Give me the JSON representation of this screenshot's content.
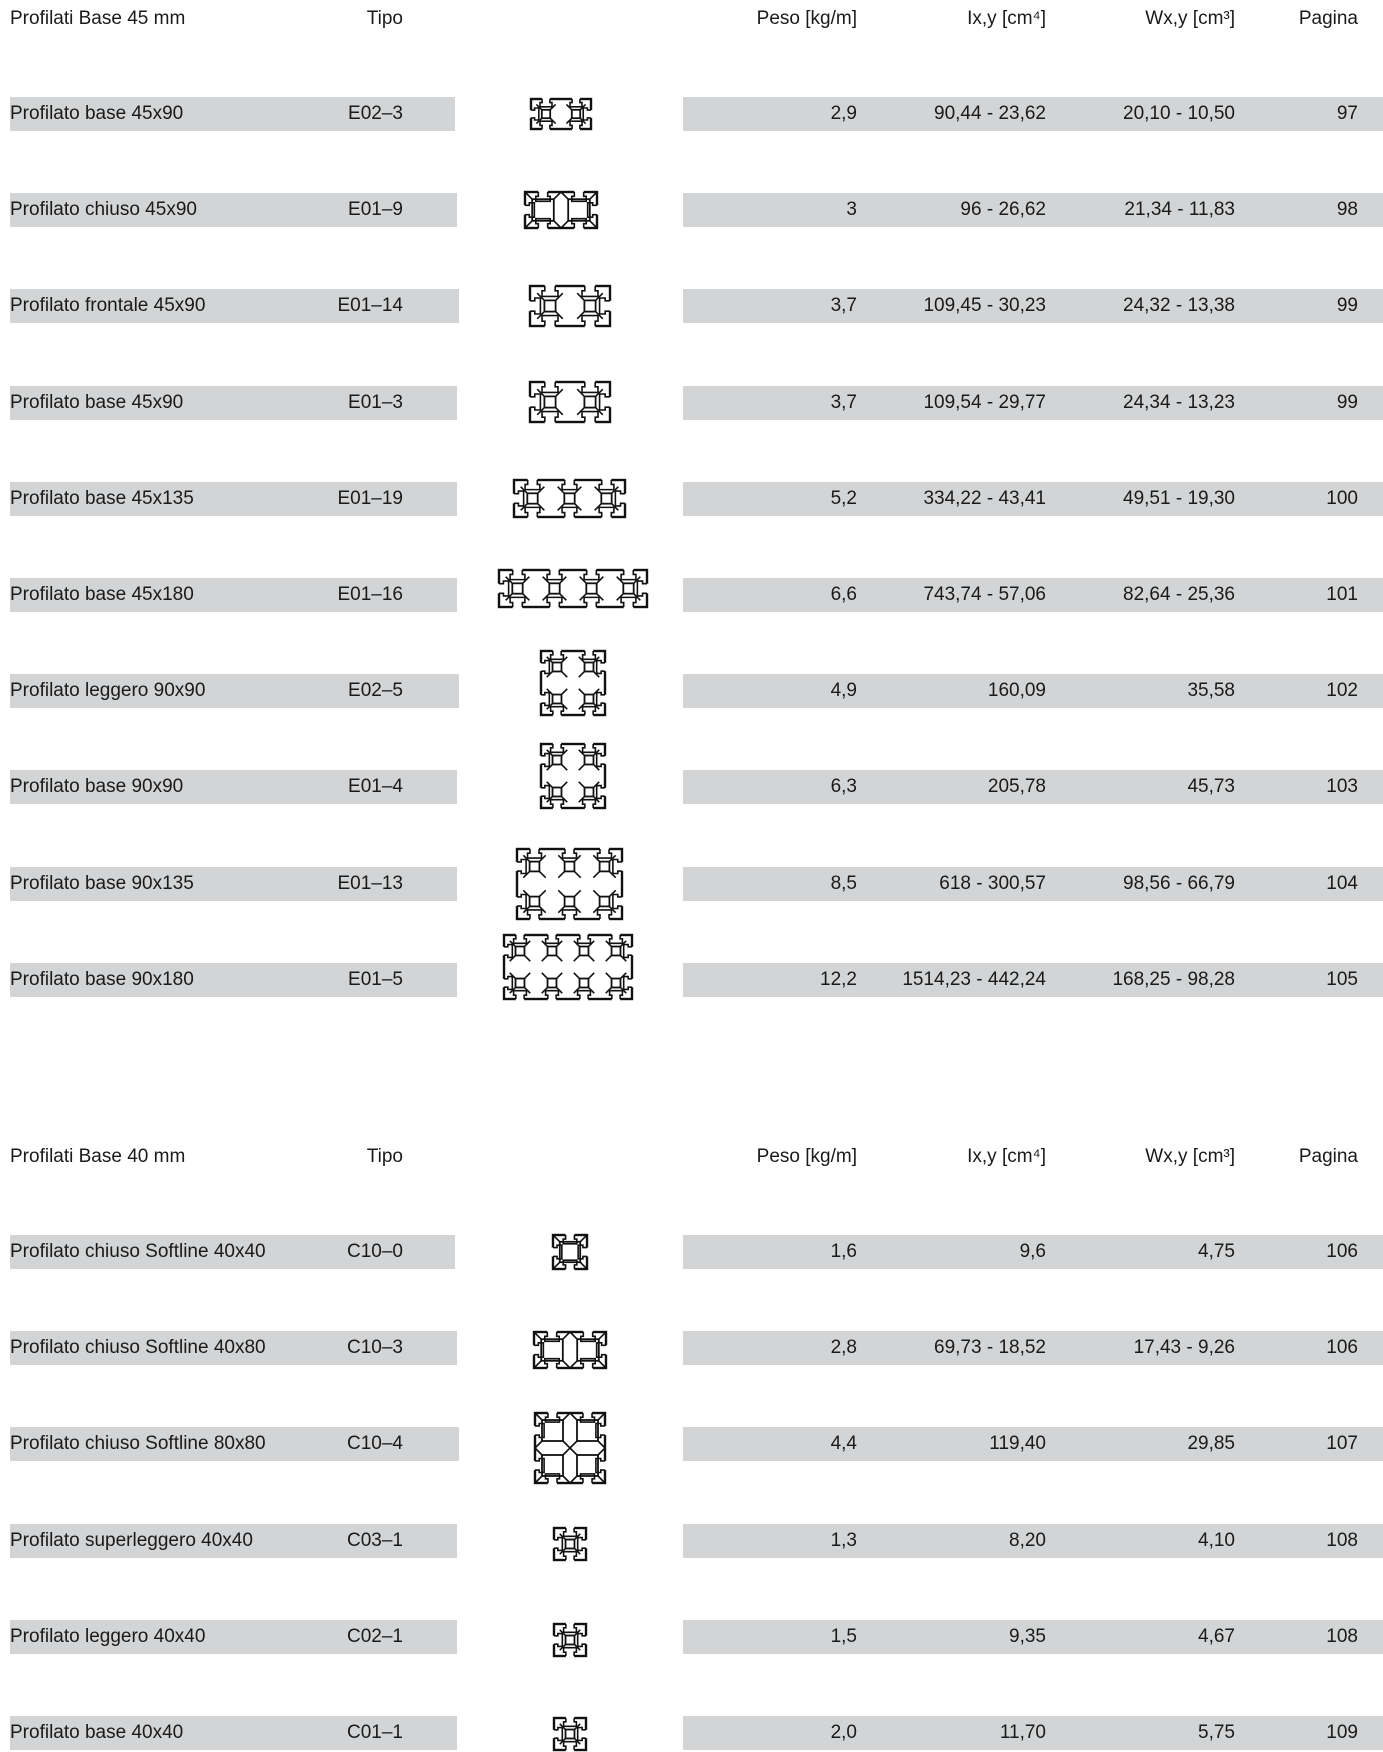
{
  "columns": {
    "tipo": "Tipo",
    "peso": "Peso [kg/m]",
    "ix": "Ix,y [cm⁴]",
    "wx": "Wx,y [cm³]",
    "pagina": "Pagina"
  },
  "sections": [
    {
      "title": "Profilati Base 45 mm",
      "rows": [
        {
          "name": "Profilato base 45x90",
          "tipo": "E02–3",
          "peso": "2,9",
          "ix": "90,44 - 23,62",
          "wx": "20,10 - 10,50",
          "pagina": "97",
          "icon": "profile-45x90-light-icon"
        },
        {
          "name": "Profilato chiuso 45x90",
          "tipo": "E01–9",
          "peso": "3",
          "ix": "96 - 26,62",
          "wx": "21,34 - 11,83",
          "pagina": "98",
          "icon": "profile-45x90-closed-icon"
        },
        {
          "name": "Profilato frontale 45x90",
          "tipo": "E01–14",
          "peso": "3,7",
          "ix": "109,45 - 30,23",
          "wx": "24,32 - 13,38",
          "pagina": "99",
          "icon": "profile-45x90-front-icon"
        },
        {
          "name": "Profilato base 45x90",
          "tipo": "E01–3",
          "peso": "3,7",
          "ix": "109,54 - 29,77",
          "wx": "24,34 - 13,23",
          "pagina": "99",
          "icon": "profile-45x90-icon"
        },
        {
          "name": "Profilato base 45x135",
          "tipo": "E01–19",
          "peso": "5,2",
          "ix": "334,22 - 43,41",
          "wx": "49,51 - 19,30",
          "pagina": "100",
          "icon": "profile-45x135-icon"
        },
        {
          "name": "Profilato base 45x180",
          "tipo": "E01–16",
          "peso": "6,6",
          "ix": "743,74 - 57,06",
          "wx": "82,64 - 25,36",
          "pagina": "101",
          "icon": "profile-45x180-icon"
        },
        {
          "name": "Profilato leggero 90x90",
          "tipo": "E02–5",
          "peso": "4,9",
          "ix": "160,09",
          "wx": "35,58",
          "pagina": "102",
          "icon": "profile-90x90-light-icon"
        },
        {
          "name": "Profilato base 90x90",
          "tipo": "E01–4",
          "peso": "6,3",
          "ix": "205,78",
          "wx": "45,73",
          "pagina": "103",
          "icon": "profile-90x90-icon"
        },
        {
          "name": "Profilato base 90x135",
          "tipo": "E01–13",
          "peso": "8,5",
          "ix": "618 - 300,57",
          "wx": "98,56 - 66,79",
          "pagina": "104",
          "icon": "profile-90x135-icon"
        },
        {
          "name": "Profilato base 90x180",
          "tipo": "E01–5",
          "peso": "12,2",
          "ix": "1514,23 - 442,24",
          "wx": "168,25 - 98,28",
          "pagina": "105",
          "icon": "profile-90x180-icon"
        }
      ]
    },
    {
      "title": "Profilati Base 40 mm",
      "rows": [
        {
          "name": "Profilato chiuso Softline 40x40",
          "tipo": "C10–0",
          "peso": "1,6",
          "ix": "9,6",
          "wx": "4,75",
          "pagina": "106",
          "icon": "profile-40x40-softline-icon"
        },
        {
          "name": "Profilato chiuso Softline 40x80",
          "tipo": "C10–3",
          "peso": "2,8",
          "ix": "69,73 - 18,52",
          "wx": "17,43 - 9,26",
          "pagina": "106",
          "icon": "profile-40x80-softline-icon"
        },
        {
          "name": "Profilato chiuso Softline 80x80",
          "tipo": "C10–4",
          "peso": "4,4",
          "ix": "119,40",
          "wx": "29,85",
          "pagina": "107",
          "icon": "profile-80x80-softline-icon"
        },
        {
          "name": "Profilato superleggero 40x40",
          "tipo": "C03–1",
          "peso": "1,3",
          "ix": "8,20",
          "wx": "4,10",
          "pagina": "108",
          "icon": "profile-40x40-superlight-icon"
        },
        {
          "name": "Profilato leggero 40x40",
          "tipo": "C02–1",
          "peso": "1,5",
          "ix": "9,35",
          "wx": "4,67",
          "pagina": "108",
          "icon": "profile-40x40-light-icon"
        },
        {
          "name": "Profilato base 40x40",
          "tipo": "C01–1",
          "peso": "2,0",
          "ix": "11,70",
          "wx": "5,75",
          "pagina": "109",
          "icon": "profile-40x40-icon"
        }
      ]
    }
  ]
}
